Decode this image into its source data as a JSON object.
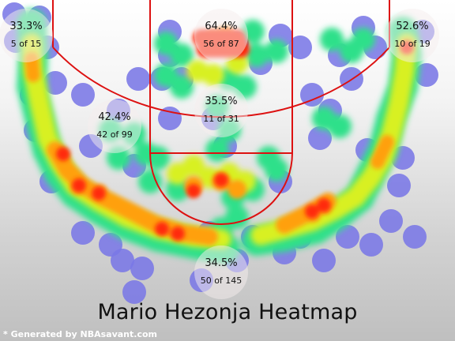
{
  "chart_data": {
    "type": "heatmap",
    "title": "Mario Hezonja Heatmap",
    "credit": "* Generated by NBAsavant.com",
    "colors": {
      "court_lines": "#dd1111",
      "zone_bubble": "#f6eeee",
      "scale": [
        "#7a78e6",
        "#2fe08a",
        "#d8f020",
        "#ffa010",
        "#ff2a0a"
      ]
    },
    "zones": [
      {
        "zone": "left-corner-three",
        "pct": "33.3%",
        "made_of": "5 of 15",
        "made": 5,
        "attempts": 15
      },
      {
        "zone": "restricted-area",
        "pct": "64.4%",
        "made_of": "56 of 87",
        "made": 56,
        "attempts": 87
      },
      {
        "zone": "right-corner-three",
        "pct": "52.6%",
        "made_of": "10 of 19",
        "made": 10,
        "attempts": 19
      },
      {
        "zone": "left-mid-range",
        "pct": "42.4%",
        "made_of": "42 of 99",
        "made": 42,
        "attempts": 99
      },
      {
        "zone": "paint-non-ra",
        "pct": "35.5%",
        "made_of": "11 of 31",
        "made": 11,
        "attempts": 31
      },
      {
        "zone": "above-break-three",
        "pct": "34.5%",
        "made_of": "50 of 145",
        "made": 50,
        "attempts": 145
      }
    ]
  }
}
